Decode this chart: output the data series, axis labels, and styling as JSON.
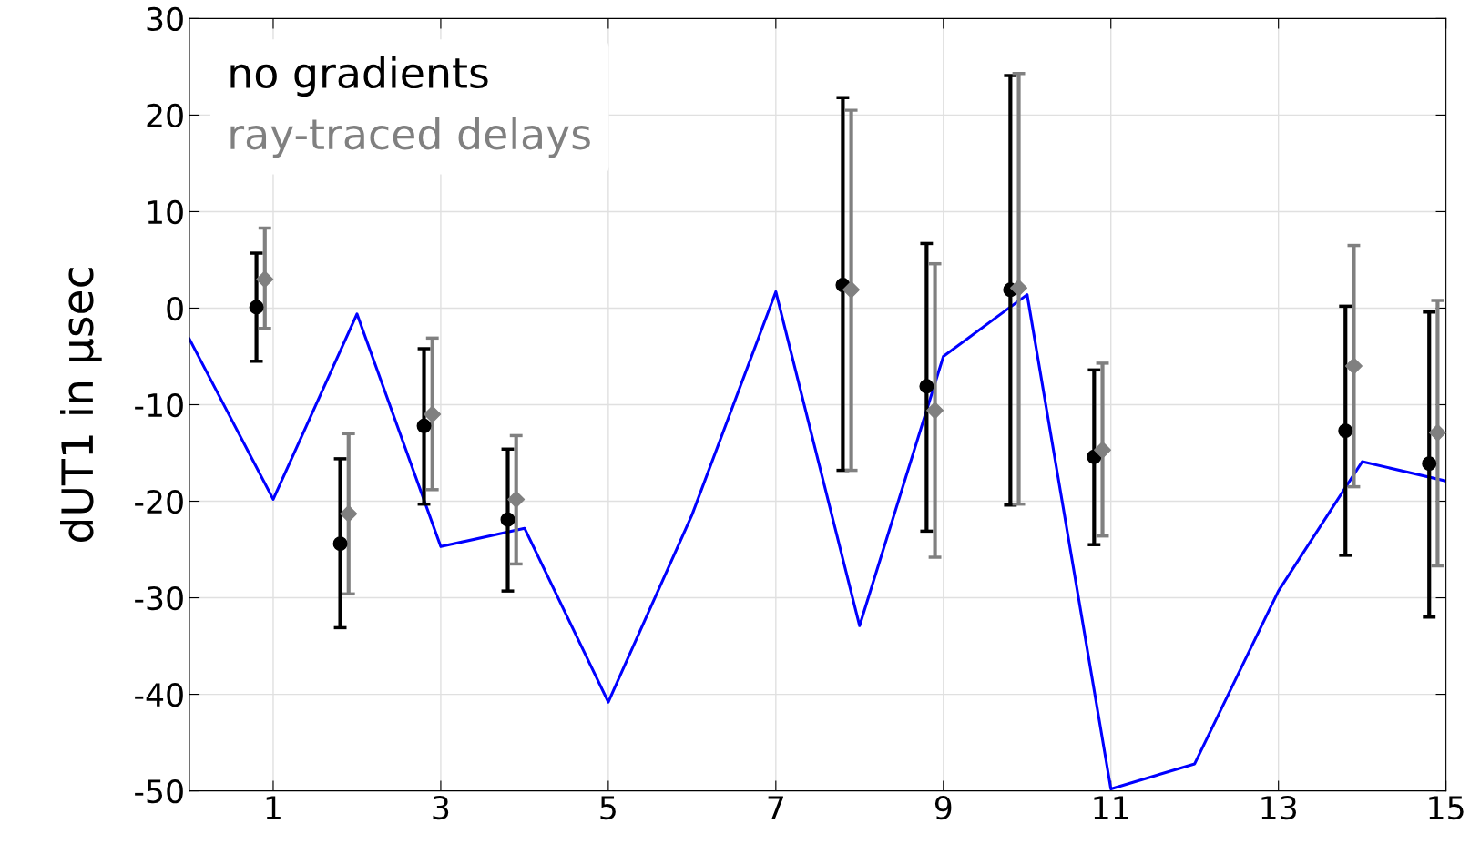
{
  "chart_data": {
    "type": "line",
    "ylabel": "dUT1 in μsec",
    "xlim": [
      0,
      15
    ],
    "xticks": [
      1,
      3,
      5,
      7,
      9,
      11,
      13,
      15
    ],
    "ylim": [
      -50,
      30
    ],
    "yticks": [
      -50,
      -40,
      -30,
      -20,
      -10,
      0,
      10,
      20,
      30
    ],
    "grid": true,
    "legend": "top left",
    "series": [
      {
        "color": "#0000ff",
        "x": [
          0,
          1,
          2,
          3,
          4,
          5,
          6,
          7,
          8,
          9,
          10,
          11,
          12,
          13,
          14,
          15
        ],
        "values": [
          -3.2,
          -19.8,
          -0.6,
          -24.7,
          -22.8,
          -40.8,
          -21.4,
          1.7,
          -32.9,
          -5.0,
          1.4,
          -49.8,
          -47.2,
          -29.3,
          -15.9,
          -17.9
        ]
      },
      {
        "type": "scatter",
        "name": "no gradients",
        "color": "#000000",
        "marker": "circle",
        "x": [
          0.8,
          1.8,
          2.8,
          3.8,
          7.8,
          8.8,
          9.8,
          10.8,
          13.8,
          14.8
        ],
        "values": [
          0.1,
          -24.4,
          -12.2,
          -21.9,
          2.4,
          -8.1,
          1.9,
          -15.4,
          -12.7,
          -16.1
        ],
        "errors": [
          [
            -5.5,
            5.7
          ],
          [
            -33.1,
            -15.6
          ],
          [
            -20.3,
            -4.2
          ],
          [
            -29.3,
            -14.6
          ],
          [
            -16.8,
            21.8
          ],
          [
            -23.1,
            6.7
          ],
          [
            -20.4,
            24.1
          ],
          [
            -24.5,
            -6.4
          ],
          [
            -25.6,
            0.2
          ],
          [
            -32.0,
            -0.4
          ]
        ]
      },
      {
        "type": "scatter",
        "name": "ray-traced delays",
        "color": "#808080",
        "marker": "diamond",
        "x": [
          0.9,
          1.9,
          2.9,
          3.9,
          7.9,
          8.9,
          9.9,
          10.9,
          13.9,
          14.9
        ],
        "values": [
          3.0,
          -21.3,
          -11.0,
          -19.8,
          1.9,
          -10.6,
          2.1,
          -14.7,
          -6.0,
          -12.9
        ],
        "errors": [
          [
            -2.1,
            8.3
          ],
          [
            -29.6,
            -13.0
          ],
          [
            -18.8,
            -3.1
          ],
          [
            -26.5,
            -13.2
          ],
          [
            -16.8,
            20.5
          ],
          [
            -25.8,
            4.6
          ],
          [
            -20.3,
            24.3
          ],
          [
            -23.6,
            -5.7
          ],
          [
            -18.5,
            6.5
          ],
          [
            -26.7,
            0.8
          ]
        ]
      }
    ]
  }
}
